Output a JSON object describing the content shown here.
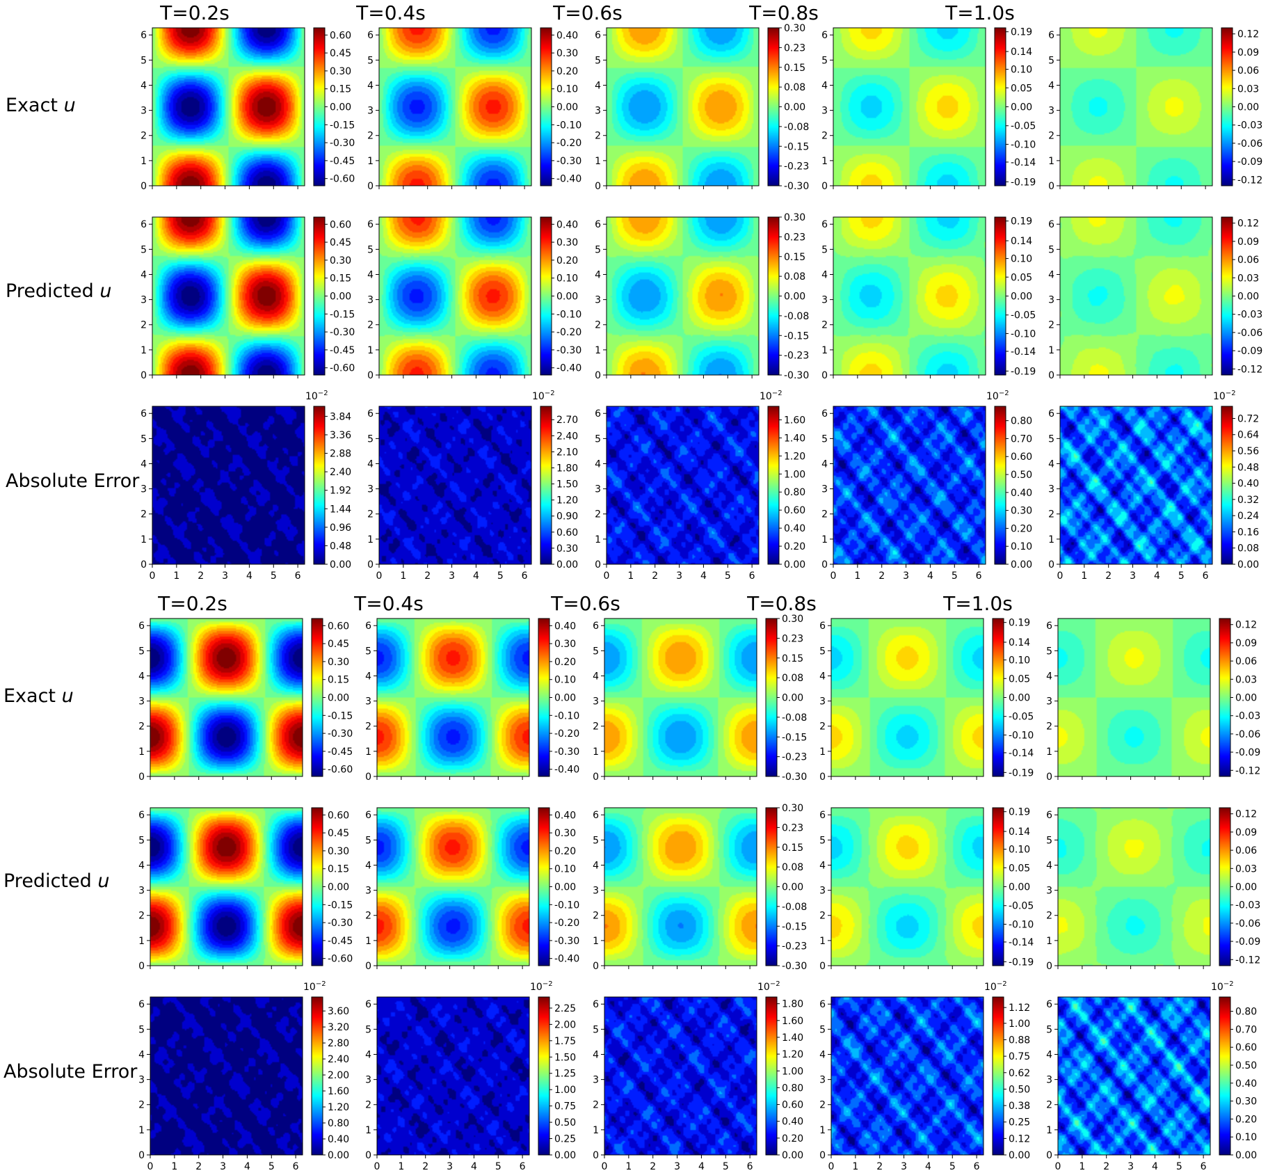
{
  "figure": {
    "blocks": [
      {
        "column_titles": [
          "T=0.2s",
          "T=0.4s",
          "T=0.6s",
          "T=0.8s",
          "T=1.0s"
        ],
        "row_labels": [
          {
            "prefix": "Exact ",
            "var": "u"
          },
          {
            "prefix": "Predicted ",
            "var": "u"
          },
          {
            "prefix": "Absolute Error",
            "var": ""
          }
        ]
      },
      {
        "column_titles": [
          "T=0.2s",
          "T=0.4s",
          "T=0.6s",
          "T=0.8s",
          "T=1.0s"
        ],
        "row_labels": [
          {
            "prefix": "Exact ",
            "var": "u"
          },
          {
            "prefix": "Predicted ",
            "var": "u"
          },
          {
            "prefix": "Absolute Error",
            "var": ""
          }
        ]
      }
    ],
    "axis_ticks": [
      "0",
      "1",
      "2",
      "3",
      "4",
      "5",
      "6"
    ],
    "error_exponent_label": "10",
    "error_exponent_power": "−2",
    "colormap": "jet"
  },
  "chart_data": {
    "type": "heatmap",
    "layout": "2 blocks x 3 rows x 5 columns of contour plots",
    "x_range": [
      0,
      6.283
    ],
    "y_range": [
      0,
      6.283
    ],
    "blocks": [
      {
        "field": "u(x,y,t) = A(t) * sin(x) * cos(y)",
        "amplitudes": [
          0.65,
          0.44,
          0.3,
          0.2,
          0.13
        ],
        "u_colorbars": [
          {
            "time": "T=0.2s",
            "ticks": [
              "0.60",
              "0.45",
              "0.30",
              "0.15",
              "0.00",
              "-0.15",
              "-0.30",
              "-0.45",
              "-0.60"
            ],
            "values": [
              0.6,
              0.45,
              0.3,
              0.15,
              0.0,
              -0.15,
              -0.3,
              -0.45,
              -0.6
            ],
            "range": [
              -0.66,
              0.66
            ]
          },
          {
            "time": "T=0.4s",
            "ticks": [
              "0.40",
              "0.30",
              "0.20",
              "0.10",
              "0.00",
              "-0.10",
              "-0.20",
              "-0.30",
              "-0.40"
            ],
            "values": [
              0.4,
              0.3,
              0.2,
              0.1,
              0.0,
              -0.1,
              -0.2,
              -0.3,
              -0.4
            ],
            "range": [
              -0.44,
              0.44
            ]
          },
          {
            "time": "T=0.6s",
            "ticks": [
              "0.30",
              "0.23",
              "0.15",
              "0.08",
              "0.00",
              "-0.08",
              "-0.15",
              "-0.23",
              "-0.30"
            ],
            "values": [
              0.3,
              0.225,
              0.15,
              0.075,
              0.0,
              -0.075,
              -0.15,
              -0.225,
              -0.3
            ],
            "range": [
              -0.3,
              0.3
            ]
          },
          {
            "time": "T=0.8s",
            "ticks": [
              "0.19",
              "0.14",
              "0.10",
              "0.05",
              "0.00",
              "-0.05",
              "-0.10",
              "-0.14",
              "-0.19"
            ],
            "values": [
              0.19,
              0.14,
              0.095,
              0.048,
              0.0,
              -0.048,
              -0.095,
              -0.14,
              -0.19
            ],
            "range": [
              -0.2,
              0.2
            ]
          },
          {
            "time": "T=1.0s",
            "ticks": [
              "0.12",
              "0.09",
              "0.06",
              "0.03",
              "0.00",
              "-0.03",
              "-0.06",
              "-0.09",
              "-0.12"
            ],
            "values": [
              0.12,
              0.09,
              0.06,
              0.03,
              0.0,
              -0.03,
              -0.06,
              -0.09,
              -0.12
            ],
            "range": [
              -0.13,
              0.13
            ]
          }
        ],
        "error_colorbars": [
          {
            "time": "T=0.2s",
            "scale": "10^-2",
            "ticks": [
              "3.84",
              "3.36",
              "2.88",
              "2.40",
              "1.92",
              "1.44",
              "0.96",
              "0.48",
              "0.00"
            ],
            "values": [
              3.84,
              3.36,
              2.88,
              2.4,
              1.92,
              1.44,
              0.96,
              0.48,
              0.0
            ],
            "range": [
              0,
              4.1
            ]
          },
          {
            "time": "T=0.4s",
            "scale": "10^-2",
            "ticks": [
              "2.70",
              "2.40",
              "2.10",
              "1.80",
              "1.50",
              "1.20",
              "0.90",
              "0.60",
              "0.30",
              "0.00"
            ],
            "values": [
              2.7,
              2.4,
              2.1,
              1.8,
              1.5,
              1.2,
              0.9,
              0.6,
              0.3,
              0.0
            ],
            "range": [
              0,
              2.95
            ]
          },
          {
            "time": "T=0.6s",
            "scale": "10^-2",
            "ticks": [
              "1.60",
              "1.40",
              "1.20",
              "1.00",
              "0.80",
              "0.60",
              "0.40",
              "0.20",
              "0.00"
            ],
            "values": [
              1.6,
              1.4,
              1.2,
              1.0,
              0.8,
              0.6,
              0.4,
              0.2,
              0.0
            ],
            "range": [
              0,
              1.75
            ]
          },
          {
            "time": "T=0.8s",
            "scale": "10^-2",
            "ticks": [
              "0.80",
              "0.70",
              "0.60",
              "0.50",
              "0.40",
              "0.30",
              "0.20",
              "0.10",
              "0.00"
            ],
            "values": [
              0.8,
              0.7,
              0.6,
              0.5,
              0.4,
              0.3,
              0.2,
              0.1,
              0.0
            ],
            "range": [
              0,
              0.88
            ]
          },
          {
            "time": "T=1.0s",
            "scale": "10^-2",
            "ticks": [
              "0.72",
              "0.64",
              "0.56",
              "0.48",
              "0.40",
              "0.32",
              "0.24",
              "0.16",
              "0.08",
              "0.00"
            ],
            "values": [
              0.72,
              0.64,
              0.56,
              0.48,
              0.4,
              0.32,
              0.24,
              0.16,
              0.08,
              0.0
            ],
            "range": [
              0,
              0.78
            ]
          }
        ]
      },
      {
        "field": "u(x,y,t) = A(t) * cos(x) * sin(y)",
        "amplitudes": [
          0.65,
          0.44,
          0.3,
          0.2,
          0.13
        ],
        "u_colorbars": [
          {
            "time": "T=0.2s",
            "ticks": [
              "0.60",
              "0.45",
              "0.30",
              "0.15",
              "0.00",
              "-0.15",
              "-0.30",
              "-0.45",
              "-0.60"
            ],
            "values": [
              0.6,
              0.45,
              0.3,
              0.15,
              0.0,
              -0.15,
              -0.3,
              -0.45,
              -0.6
            ],
            "range": [
              -0.66,
              0.66
            ]
          },
          {
            "time": "T=0.4s",
            "ticks": [
              "0.40",
              "0.30",
              "0.20",
              "0.10",
              "0.00",
              "-0.10",
              "-0.20",
              "-0.30",
              "-0.40"
            ],
            "values": [
              0.4,
              0.3,
              0.2,
              0.1,
              0.0,
              -0.1,
              -0.2,
              -0.3,
              -0.4
            ],
            "range": [
              -0.44,
              0.44
            ]
          },
          {
            "time": "T=0.6s",
            "ticks": [
              "0.30",
              "0.23",
              "0.15",
              "0.08",
              "0.00",
              "-0.08",
              "-0.15",
              "-0.23",
              "-0.30"
            ],
            "values": [
              0.3,
              0.225,
              0.15,
              0.075,
              0.0,
              -0.075,
              -0.15,
              -0.225,
              -0.3
            ],
            "range": [
              -0.3,
              0.3
            ]
          },
          {
            "time": "T=0.8s",
            "ticks": [
              "0.19",
              "0.14",
              "0.10",
              "0.05",
              "0.00",
              "-0.05",
              "-0.10",
              "-0.14",
              "-0.19"
            ],
            "values": [
              0.19,
              0.14,
              0.095,
              0.048,
              0.0,
              -0.048,
              -0.095,
              -0.14,
              -0.19
            ],
            "range": [
              -0.2,
              0.2
            ]
          },
          {
            "time": "T=1.0s",
            "ticks": [
              "0.12",
              "0.09",
              "0.06",
              "0.03",
              "0.00",
              "-0.03",
              "-0.06",
              "-0.09",
              "-0.12"
            ],
            "values": [
              0.12,
              0.09,
              0.06,
              0.03,
              0.0,
              -0.03,
              -0.06,
              -0.09,
              -0.12
            ],
            "range": [
              -0.13,
              0.13
            ]
          }
        ],
        "error_colorbars": [
          {
            "time": "T=0.2s",
            "scale": "10^-2",
            "ticks": [
              "3.60",
              "3.20",
              "2.80",
              "2.40",
              "2.00",
              "1.60",
              "1.20",
              "0.80",
              "0.40",
              "0.00"
            ],
            "values": [
              3.6,
              3.2,
              2.8,
              2.4,
              2.0,
              1.6,
              1.2,
              0.8,
              0.4,
              0.0
            ],
            "range": [
              0,
              3.95
            ]
          },
          {
            "time": "T=0.4s",
            "scale": "10^-2",
            "ticks": [
              "2.25",
              "2.00",
              "1.75",
              "1.50",
              "1.25",
              "1.00",
              "0.75",
              "0.50",
              "0.25",
              "0.00"
            ],
            "values": [
              2.25,
              2.0,
              1.75,
              1.5,
              1.25,
              1.0,
              0.75,
              0.5,
              0.25,
              0.0
            ],
            "range": [
              0,
              2.42
            ]
          },
          {
            "time": "T=0.6s",
            "scale": "10^-2",
            "ticks": [
              "1.80",
              "1.60",
              "1.40",
              "1.20",
              "1.00",
              "0.80",
              "0.60",
              "0.40",
              "0.20",
              "0.00"
            ],
            "values": [
              1.8,
              1.6,
              1.4,
              1.2,
              1.0,
              0.8,
              0.6,
              0.4,
              0.2,
              0.0
            ],
            "range": [
              0,
              1.88
            ]
          },
          {
            "time": "T=0.8s",
            "scale": "10^-2",
            "ticks": [
              "1.12",
              "1.00",
              "0.88",
              "0.75",
              "0.62",
              "0.50",
              "0.38",
              "0.25",
              "0.12",
              "0.00"
            ],
            "values": [
              1.12,
              1.0,
              0.875,
              0.75,
              0.625,
              0.5,
              0.375,
              0.25,
              0.125,
              0.0
            ],
            "range": [
              0,
              1.2
            ]
          },
          {
            "time": "T=1.0s",
            "scale": "10^-2",
            "ticks": [
              "0.80",
              "0.70",
              "0.60",
              "0.50",
              "0.40",
              "0.30",
              "0.20",
              "0.10",
              "0.00"
            ],
            "values": [
              0.8,
              0.7,
              0.6,
              0.5,
              0.4,
              0.3,
              0.2,
              0.1,
              0.0
            ],
            "range": [
              0,
              0.88
            ]
          }
        ]
      }
    ]
  }
}
